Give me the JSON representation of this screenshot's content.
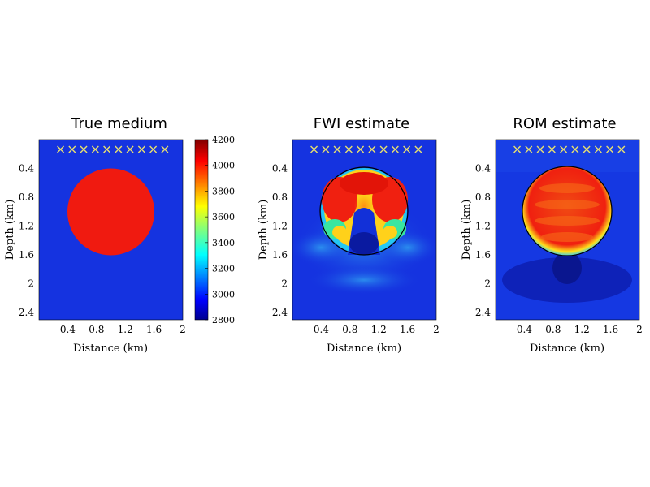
{
  "chart_data": [
    {
      "type": "heatmap",
      "title": "True medium",
      "xlabel": "Distance (km)",
      "ylabel": "Depth (km)",
      "xlim": [
        0,
        2
      ],
      "ylim": [
        0.0,
        2.5
      ],
      "xticks": [
        "0.4",
        "0.8",
        "1.2",
        "1.6",
        "2"
      ],
      "yticks": [
        "0.4",
        "0.8",
        "1.2",
        "1.6",
        "2",
        "2.4"
      ],
      "background_value": 2900,
      "inclusion": {
        "shape": "disk",
        "center_x": 1.0,
        "center_depth": 1.0,
        "radius": 0.6,
        "value": 4100
      },
      "sources": {
        "marker": "x",
        "count": 10,
        "depth": 0.15,
        "x_from": 0.3,
        "x_to": 1.75
      }
    },
    {
      "type": "heatmap",
      "title": "FWI estimate",
      "xlabel": "Distance (km)",
      "ylabel": "Depth (km)",
      "xlim": [
        0,
        2
      ],
      "ylim": [
        0.0,
        2.5
      ],
      "xticks": [
        "0.4",
        "0.8",
        "1.2",
        "1.6",
        "2"
      ],
      "yticks": [
        "0.4",
        "0.8",
        "1.2",
        "1.6",
        "2",
        "2.4"
      ],
      "background_value": 2950,
      "outline": {
        "shape": "circle",
        "center_x": 1.0,
        "center_depth": 1.0,
        "radius": 0.6
      },
      "sources": {
        "marker": "x",
        "count": 10,
        "depth": 0.15,
        "x_from": 0.3,
        "x_to": 1.75
      }
    },
    {
      "type": "heatmap",
      "title": "ROM estimate",
      "xlabel": "Distance (km)",
      "ylabel": "Depth (km)",
      "xlim": [
        0,
        2
      ],
      "ylim": [
        0.0,
        2.5
      ],
      "xticks": [
        "0.4",
        "0.8",
        "1.2",
        "1.6",
        "2"
      ],
      "yticks": [
        "0.4",
        "0.8",
        "1.2",
        "1.6",
        "2",
        "2.4"
      ],
      "background_value": 2900,
      "outline": {
        "shape": "circle",
        "center_x": 1.0,
        "center_depth": 1.0,
        "radius": 0.6
      },
      "sources": {
        "marker": "x",
        "count": 10,
        "depth": 0.15,
        "x_from": 0.3,
        "x_to": 1.75
      }
    }
  ],
  "colorbar": {
    "min": 2800,
    "max": 4200,
    "ticks": [
      "4200",
      "4000",
      "3800",
      "3600",
      "3400",
      "3200",
      "3000",
      "2800"
    ],
    "colormap": "jet"
  },
  "colors": {
    "source_marker": "#e8e070",
    "outline": "#000000",
    "background_blue": "#1533e0",
    "inclusion_red": "#f01a10"
  }
}
